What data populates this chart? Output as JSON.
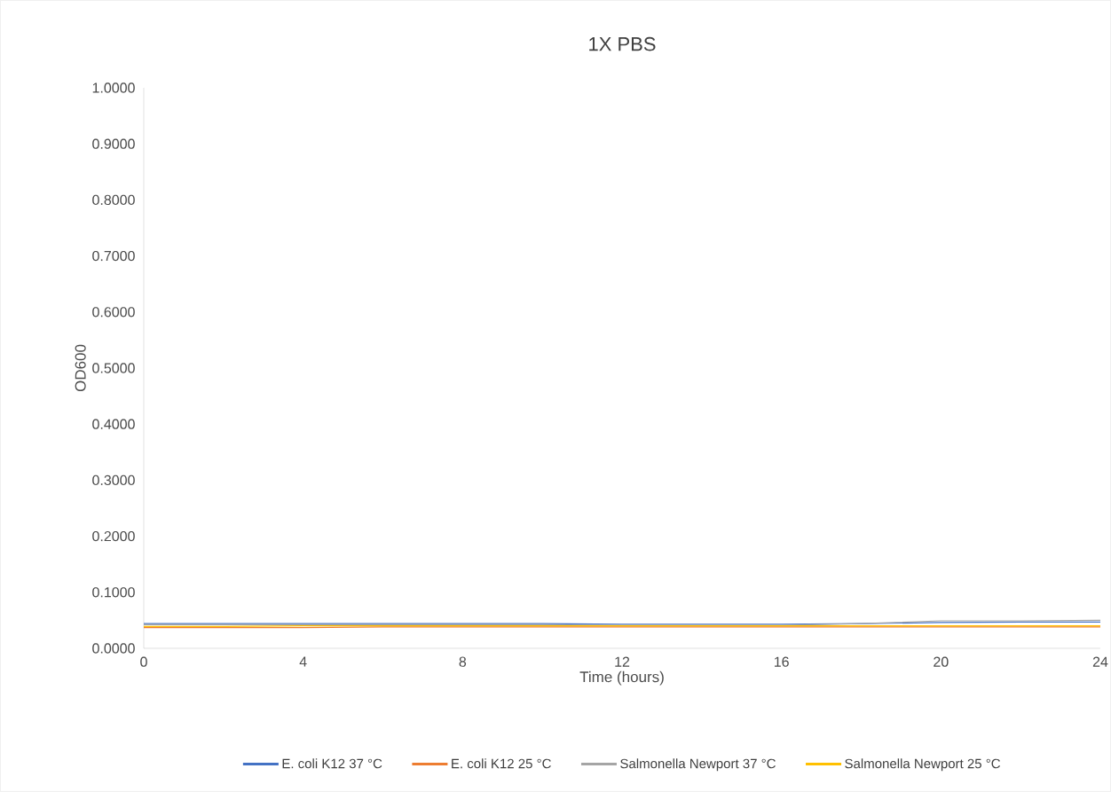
{
  "chart_data": {
    "type": "line",
    "title": "1X PBS",
    "xlabel": "Time (hours)",
    "ylabel": "OD600",
    "x": [
      0,
      2,
      4,
      6,
      8,
      10,
      12,
      14,
      16,
      18,
      20,
      22,
      24
    ],
    "series": [
      {
        "name": "E. coli K12 37 °C",
        "color": "#4472c4",
        "values": [
          0.044,
          0.044,
          0.044,
          0.044,
          0.044,
          0.044,
          0.043,
          0.043,
          0.043,
          0.044,
          0.046,
          0.047,
          0.047
        ]
      },
      {
        "name": "E. coli K12 25 °C",
        "color": "#ed7d31",
        "values": [
          0.037,
          0.037,
          0.037,
          0.038,
          0.038,
          0.038,
          0.038,
          0.038,
          0.038,
          0.038,
          0.038,
          0.038,
          0.038
        ]
      },
      {
        "name": "Salmonella Newport 37 °C",
        "color": "#a5a5a5",
        "values": [
          0.042,
          0.042,
          0.042,
          0.042,
          0.042,
          0.042,
          0.041,
          0.041,
          0.041,
          0.044,
          0.049,
          0.049,
          0.05
        ]
      },
      {
        "name": "Salmonella Newport 25 °C",
        "color": "#ffc000",
        "values": [
          0.039,
          0.039,
          0.04,
          0.04,
          0.04,
          0.04,
          0.04,
          0.04,
          0.04,
          0.04,
          0.04,
          0.04,
          0.04
        ]
      }
    ],
    "xlim": [
      0,
      24
    ],
    "xticks": [
      0,
      4,
      8,
      12,
      16,
      20,
      24
    ],
    "ylim": [
      0,
      1
    ],
    "yticks": [
      {
        "value": 0,
        "label": "0.0000"
      },
      {
        "value": 0.1,
        "label": "0.1000"
      },
      {
        "value": 0.2,
        "label": "0.2000"
      },
      {
        "value": 0.3,
        "label": "0.3000"
      },
      {
        "value": 0.4,
        "label": "0.4000"
      },
      {
        "value": 0.5,
        "label": "0.5000"
      },
      {
        "value": 0.6,
        "label": "0.6000"
      },
      {
        "value": 0.7,
        "label": "0.7000"
      },
      {
        "value": 0.8,
        "label": "0.8000"
      },
      {
        "value": 0.9,
        "label": "0.9000"
      },
      {
        "value": 1,
        "label": "1.0000"
      }
    ],
    "grid": false,
    "legend": "bottom",
    "marker": "none",
    "line_style": "solid"
  }
}
